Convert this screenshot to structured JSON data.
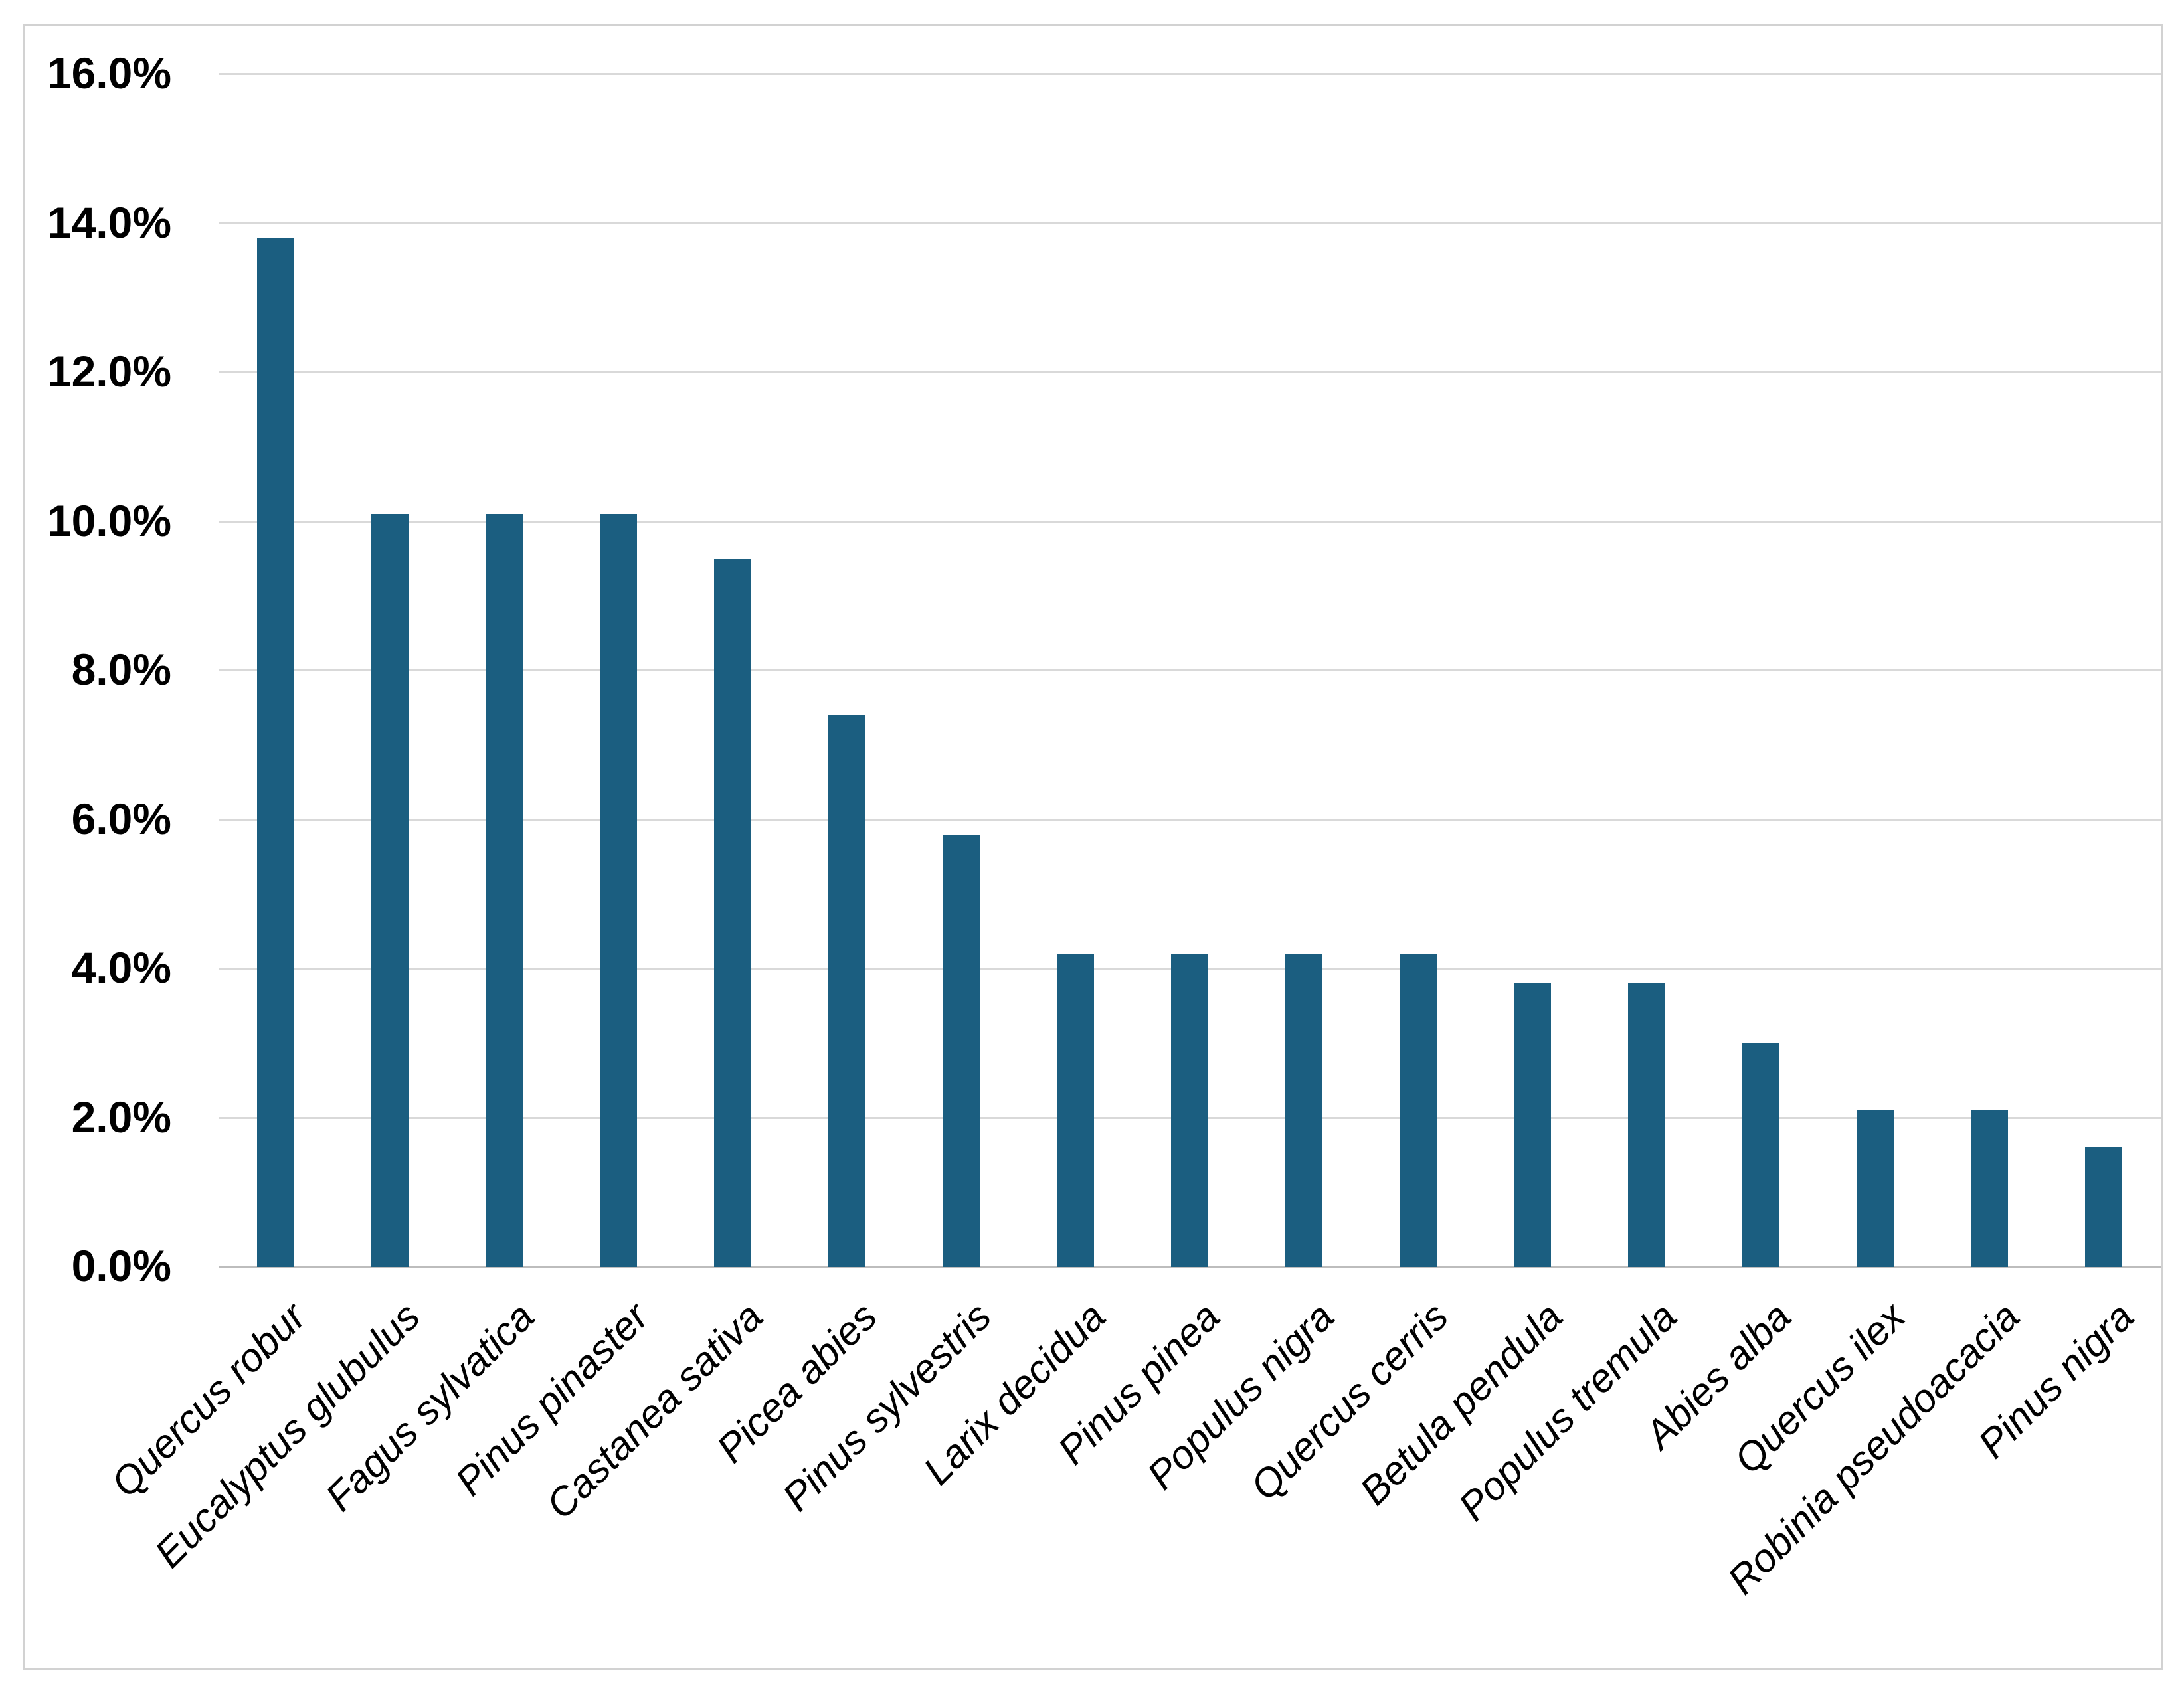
{
  "chart_data": {
    "type": "bar",
    "title": "",
    "xlabel": "",
    "ylabel": "",
    "unit": "%",
    "categories": [
      "Quercus robur",
      "Eucalyptus glubulus",
      "Fagus sylvatica",
      "Pinus pinaster",
      "Castanea sativa",
      "Picea abies",
      "Pinus sylvestris",
      "Larix decidua",
      "Pinus pinea",
      "Populus nigra",
      "Quercus cerris",
      "Betula pendula",
      "Populus tremula",
      "Abies alba",
      "Quercus ilex",
      "Robinia pseudoacacia",
      "Pinus nigra"
    ],
    "values": [
      13.8,
      10.1,
      10.1,
      10.1,
      9.5,
      7.4,
      5.8,
      4.2,
      4.2,
      4.2,
      4.2,
      3.8,
      3.8,
      3.0,
      2.1,
      2.1,
      1.6
    ],
    "ylim": [
      0,
      16
    ],
    "ytick_step": 2,
    "y_ticks": [
      "0.0%",
      "2.0%",
      "4.0%",
      "6.0%",
      "8.0%",
      "10.0%",
      "12.0%",
      "14.0%",
      "16.0%"
    ],
    "grid": true,
    "legend": "none",
    "category_label_rotation_deg": -45,
    "category_label_style": "italic",
    "colors": {
      "bar": "#1B5E80",
      "gridline": "#D9D9D9",
      "axis_line": "#BDBDBD",
      "frame_border": "#D2D2D2",
      "text": "#000000",
      "background": "#FFFFFF"
    }
  }
}
